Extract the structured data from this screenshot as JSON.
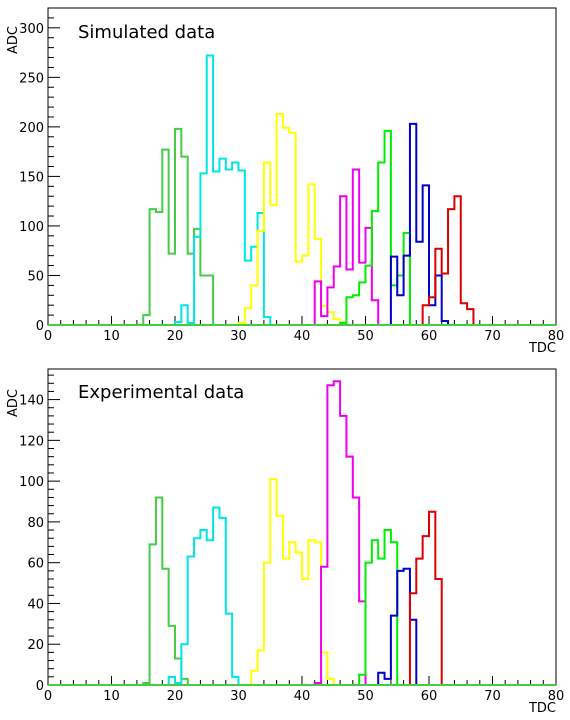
{
  "chart_data": [
    {
      "type": "histogram",
      "title": "Simulated data",
      "xlabel": "TDC",
      "ylabel": "ADC",
      "xlim": [
        0,
        80
      ],
      "ylim": [
        0,
        320
      ],
      "bin_width": 1,
      "x_ticks": [
        0,
        10,
        20,
        30,
        40,
        50,
        60,
        70,
        80
      ],
      "y_ticks": [
        0,
        50,
        100,
        150,
        200,
        250,
        300
      ],
      "legend": "none",
      "grid": false,
      "series": [
        {
          "color": "#44cc44",
          "bins": [
            [
              15,
              10
            ],
            [
              16,
              117
            ],
            [
              17,
              114
            ],
            [
              18,
              177
            ],
            [
              19,
              72
            ],
            [
              20,
              198
            ],
            [
              21,
              170
            ],
            [
              22,
              72
            ],
            [
              23,
              97
            ],
            [
              24,
              50
            ],
            [
              25,
              50
            ]
          ]
        },
        {
          "color": "#00e5e5",
          "bins": [
            [
              20,
              3
            ],
            [
              21,
              20
            ],
            [
              22,
              2
            ],
            [
              23,
              89
            ],
            [
              24,
              153
            ],
            [
              25,
              272
            ],
            [
              26,
              155
            ],
            [
              27,
              168
            ],
            [
              28,
              157
            ],
            [
              29,
              164
            ],
            [
              30,
              156
            ],
            [
              31,
              65
            ],
            [
              32,
              79
            ],
            [
              33,
              113
            ],
            [
              34,
              8
            ]
          ]
        },
        {
          "color": "#ffff00",
          "bins": [
            [
              30,
              2
            ],
            [
              31,
              17
            ],
            [
              32,
              40
            ],
            [
              33,
              95
            ],
            [
              34,
              164
            ],
            [
              35,
              121
            ],
            [
              36,
              213
            ],
            [
              37,
              199
            ],
            [
              38,
              194
            ],
            [
              39,
              64
            ],
            [
              40,
              70
            ],
            [
              41,
              142
            ],
            [
              42,
              87
            ],
            [
              43,
              19
            ],
            [
              44,
              13
            ],
            [
              45,
              6
            ]
          ]
        },
        {
          "color": "#ee00ee",
          "bins": [
            [
              42,
              44
            ],
            [
              43,
              9
            ],
            [
              44,
              38
            ],
            [
              45,
              59
            ],
            [
              46,
              130
            ],
            [
              47,
              56
            ],
            [
              48,
              157
            ],
            [
              49,
              63
            ],
            [
              50,
              98
            ],
            [
              51,
              25
            ],
            [
              52,
              0
            ]
          ]
        },
        {
          "color": "#00ee00",
          "bins": [
            [
              46,
              2
            ],
            [
              47,
              28
            ],
            [
              48,
              30
            ],
            [
              49,
              43
            ],
            [
              50,
              60
            ],
            [
              51,
              115
            ],
            [
              52,
              164
            ],
            [
              53,
              196
            ],
            [
              54,
              40
            ],
            [
              55,
              50
            ],
            [
              56,
              93
            ],
            [
              57,
              0
            ]
          ]
        },
        {
          "color": "#0000cc",
          "bins": [
            [
              54,
              69
            ],
            [
              55,
              30
            ],
            [
              56,
              70
            ],
            [
              57,
              203
            ],
            [
              58,
              84
            ],
            [
              59,
              141
            ],
            [
              60,
              20
            ],
            [
              61,
              50
            ],
            [
              62,
              4
            ]
          ]
        },
        {
          "color": "#dd0000",
          "bins": [
            [
              59,
              20
            ],
            [
              60,
              28
            ],
            [
              61,
              77
            ],
            [
              62,
              52
            ],
            [
              63,
              117
            ],
            [
              64,
              130
            ],
            [
              65,
              22
            ],
            [
              66,
              16
            ],
            [
              67,
              0
            ]
          ]
        }
      ]
    },
    {
      "type": "histogram",
      "title": "Experimental data",
      "xlabel": "TDC",
      "ylabel": "ADC",
      "xlim": [
        0,
        80
      ],
      "ylim": [
        0,
        155
      ],
      "bin_width": 1,
      "x_ticks": [
        0,
        10,
        20,
        30,
        40,
        50,
        60,
        70,
        80
      ],
      "y_ticks": [
        0,
        20,
        40,
        60,
        80,
        100,
        120,
        140
      ],
      "legend": "none",
      "grid": false,
      "series": [
        {
          "color": "#44cc44",
          "bins": [
            [
              15,
              1
            ],
            [
              16,
              69
            ],
            [
              17,
              92
            ],
            [
              18,
              57
            ],
            [
              19,
              29
            ],
            [
              20,
              13
            ],
            [
              21,
              3
            ]
          ]
        },
        {
          "color": "#00e5e5",
          "bins": [
            [
              19,
              4
            ],
            [
              20,
              1
            ],
            [
              21,
              20
            ],
            [
              22,
              63
            ],
            [
              23,
              72
            ],
            [
              24,
              76
            ],
            [
              25,
              71
            ],
            [
              26,
              87
            ],
            [
              27,
              82
            ],
            [
              28,
              35
            ],
            [
              29,
              4
            ]
          ]
        },
        {
          "color": "#ffff00",
          "bins": [
            [
              32,
              7
            ],
            [
              33,
              17
            ],
            [
              34,
              60
            ],
            [
              35,
              101
            ],
            [
              36,
              83
            ],
            [
              37,
              62
            ],
            [
              38,
              70
            ],
            [
              39,
              65
            ],
            [
              40,
              52
            ],
            [
              41,
              71
            ],
            [
              42,
              70
            ],
            [
              43,
              16
            ],
            [
              44,
              3
            ]
          ]
        },
        {
          "color": "#ee00ee",
          "bins": [
            [
              42,
              1
            ],
            [
              43,
              58
            ],
            [
              44,
              147
            ],
            [
              45,
              149
            ],
            [
              46,
              132
            ],
            [
              47,
              112
            ],
            [
              48,
              92
            ],
            [
              49,
              41
            ],
            [
              50,
              0
            ]
          ]
        },
        {
          "color": "#00ee00",
          "bins": [
            [
              49,
              5
            ],
            [
              50,
              60
            ],
            [
              51,
              71
            ],
            [
              52,
              62
            ],
            [
              53,
              76
            ],
            [
              54,
              70
            ],
            [
              55,
              0
            ]
          ]
        },
        {
          "color": "#0000cc",
          "bins": [
            [
              52,
              6
            ],
            [
              53,
              3
            ],
            [
              54,
              34
            ],
            [
              55,
              56
            ],
            [
              56,
              57
            ],
            [
              57,
              32
            ],
            [
              58,
              0
            ]
          ]
        },
        {
          "color": "#dd0000",
          "bins": [
            [
              57,
              45
            ],
            [
              58,
              62
            ],
            [
              59,
              73
            ],
            [
              60,
              85
            ],
            [
              61,
              52
            ],
            [
              62,
              0
            ]
          ]
        }
      ]
    }
  ]
}
